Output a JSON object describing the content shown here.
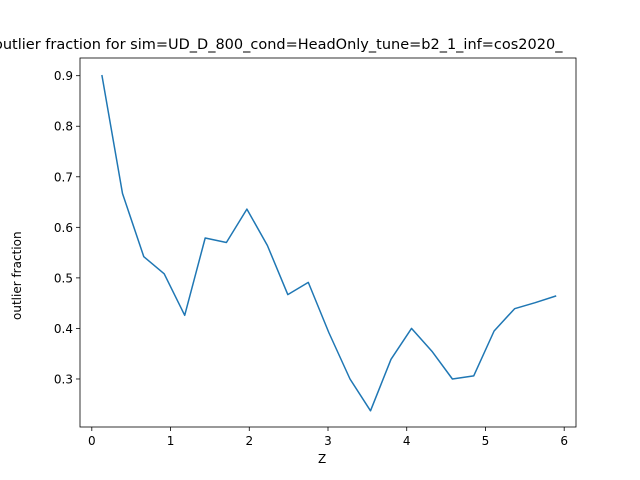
{
  "chart_data": {
    "type": "line",
    "title": "outlier fraction for sim=UD_D_800_cond=HeadOnly_tune=b2_1_inf=cos2020_",
    "xlabel": "Z",
    "ylabel": "outlier fraction",
    "xlim": [
      -0.15,
      6.15
    ],
    "ylim": [
      0.205,
      0.935
    ],
    "xticks": [
      0,
      1,
      2,
      3,
      4,
      5,
      6
    ],
    "xtick_labels": [
      "0",
      "1",
      "2",
      "3",
      "4",
      "5",
      "6"
    ],
    "yticks": [
      0.3,
      0.4,
      0.5,
      0.6,
      0.7,
      0.8,
      0.9
    ],
    "ytick_labels": [
      "0.3",
      "0.4",
      "0.5",
      "0.6",
      "0.7",
      "0.8",
      "0.9"
    ],
    "grid": false,
    "color": "#1f77b4",
    "series": [
      {
        "x": [
          0.13,
          0.39,
          0.66,
          0.92,
          1.18,
          1.44,
          1.71,
          1.97,
          2.23,
          2.49,
          2.75,
          3.01,
          3.28,
          3.54,
          3.8,
          4.06,
          4.32,
          4.58,
          4.85,
          5.11,
          5.37,
          5.63,
          5.89
        ],
        "y": [
          0.9,
          0.667,
          0.542,
          0.508,
          0.426,
          0.579,
          0.57,
          0.636,
          0.564,
          0.467,
          0.491,
          0.392,
          0.3,
          0.237,
          0.339,
          0.4,
          0.355,
          0.3,
          0.306,
          0.395,
          0.439,
          0.451,
          0.464
        ]
      }
    ]
  }
}
